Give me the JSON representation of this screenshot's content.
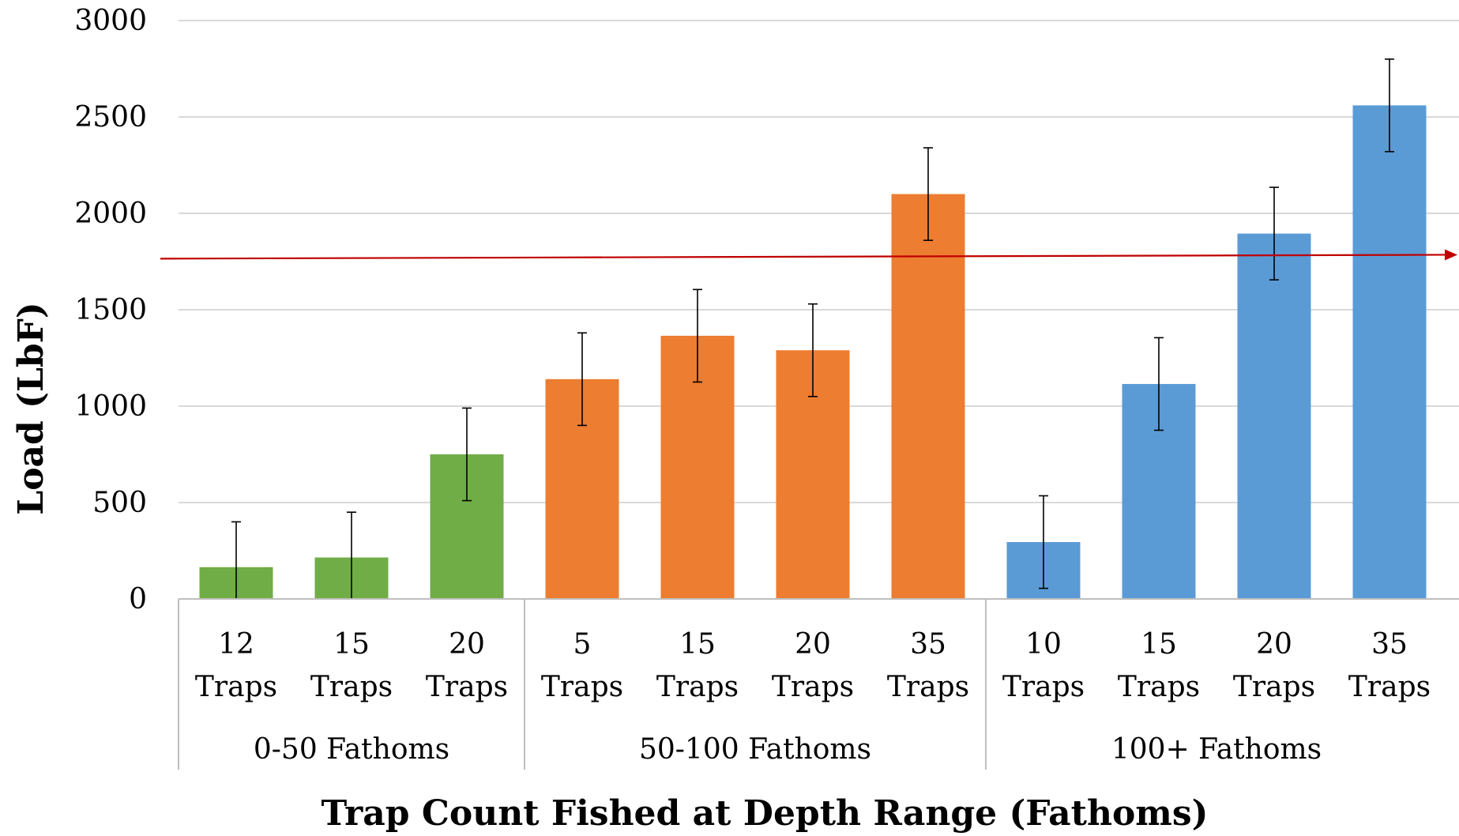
{
  "chart_data": {
    "type": "bar",
    "title": "",
    "xlabel": "Trap Count Fished at Depth Range (Fathoms)",
    "ylabel": "Load (LbF)",
    "ylim": [
      0,
      3000
    ],
    "yticks": [
      "0",
      "500",
      "1000",
      "1500",
      "2000",
      "2500",
      "3000"
    ],
    "grid": true,
    "legend": "none",
    "groups": [
      {
        "name": "0-50 Fathoms",
        "color": "#70AD47",
        "bars": [
          {
            "count": "12",
            "unit": "Traps",
            "value": 165,
            "err": 235
          },
          {
            "count": "15",
            "unit": "Traps",
            "value": 215,
            "err": 235
          },
          {
            "count": "20",
            "unit": "Traps",
            "value": 750,
            "err": 240
          }
        ]
      },
      {
        "name": "50-100 Fathoms",
        "color": "#ED7D31",
        "bars": [
          {
            "count": "5",
            "unit": "Traps",
            "value": 1140,
            "err": 240
          },
          {
            "count": "15",
            "unit": "Traps",
            "value": 1365,
            "err": 240
          },
          {
            "count": "20",
            "unit": "Traps",
            "value": 1290,
            "err": 240
          },
          {
            "count": "35",
            "unit": "Traps",
            "value": 2100,
            "err": 240
          }
        ]
      },
      {
        "name": "100+ Fathoms",
        "color": "#5B9BD5",
        "bars": [
          {
            "count": "10",
            "unit": "Traps",
            "value": 295,
            "err": 240
          },
          {
            "count": "15",
            "unit": "Traps",
            "value": 1115,
            "err": 240
          },
          {
            "count": "20",
            "unit": "Traps",
            "value": 1895,
            "err": 240
          },
          {
            "count": "35",
            "unit": "Traps",
            "value": 2560,
            "err": 240
          }
        ]
      }
    ],
    "reference_line": {
      "y_start": 1765,
      "y_end": 1785,
      "color": "#C00000"
    }
  }
}
